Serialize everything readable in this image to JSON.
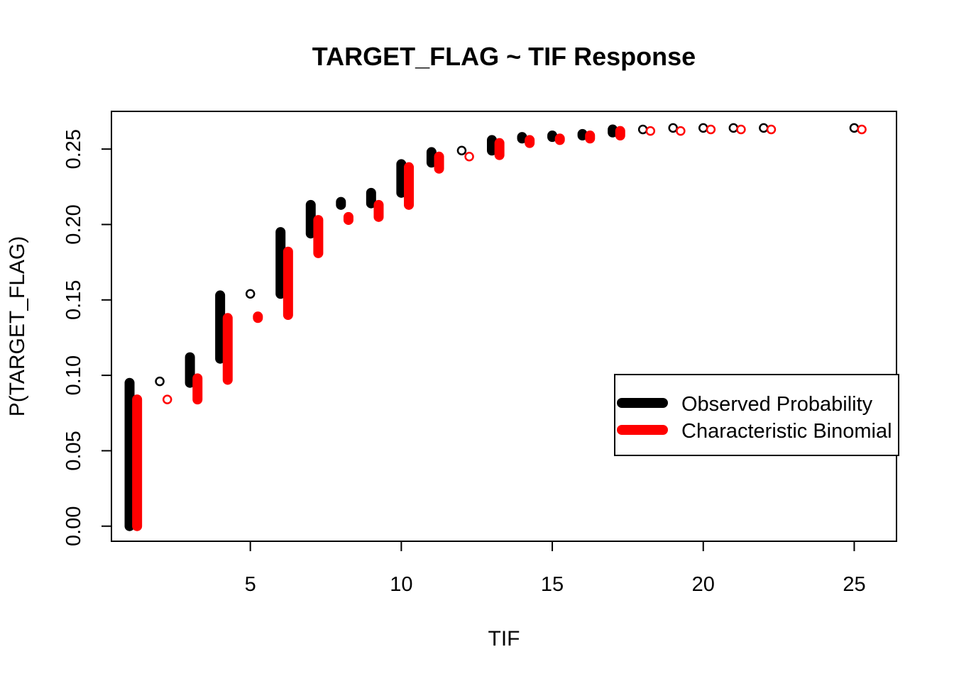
{
  "chart_data": {
    "type": "scatter",
    "title": "TARGET_FLAG ~ TIF Response",
    "xlabel": "TIF",
    "ylabel": "P(TARGET_FLAG)",
    "xlim": [
      0.4,
      26.4
    ],
    "ylim": [
      -0.01,
      0.275
    ],
    "x_ticks": [
      5,
      10,
      15,
      20,
      25
    ],
    "y_ticks": [
      0.0,
      0.05,
      0.1,
      0.15,
      0.2,
      0.25
    ],
    "y_tick_labels": [
      "0.00",
      "0.05",
      "0.10",
      "0.15",
      "0.20",
      "0.25"
    ],
    "legend_position": "right",
    "series": [
      {
        "name": "Observed Probability",
        "color": "#000000",
        "x_offset": 0,
        "points": [
          {
            "x": 1,
            "ymin": 0.0,
            "ymax": 0.095
          },
          {
            "x": 2,
            "ymin": 0.096,
            "ymax": 0.096
          },
          {
            "x": 3,
            "ymin": 0.095,
            "ymax": 0.112
          },
          {
            "x": 4,
            "ymin": 0.111,
            "ymax": 0.153
          },
          {
            "x": 5,
            "ymin": 0.154,
            "ymax": 0.154
          },
          {
            "x": 6,
            "ymin": 0.154,
            "ymax": 0.195
          },
          {
            "x": 7,
            "ymin": 0.194,
            "ymax": 0.213
          },
          {
            "x": 8,
            "ymin": 0.213,
            "ymax": 0.215
          },
          {
            "x": 9,
            "ymin": 0.214,
            "ymax": 0.221
          },
          {
            "x": 10,
            "ymin": 0.221,
            "ymax": 0.24
          },
          {
            "x": 11,
            "ymin": 0.241,
            "ymax": 0.248
          },
          {
            "x": 12,
            "ymin": 0.249,
            "ymax": 0.249
          },
          {
            "x": 13,
            "ymin": 0.249,
            "ymax": 0.256
          },
          {
            "x": 14,
            "ymin": 0.257,
            "ymax": 0.258
          },
          {
            "x": 15,
            "ymin": 0.258,
            "ymax": 0.259
          },
          {
            "x": 16,
            "ymin": 0.259,
            "ymax": 0.26
          },
          {
            "x": 17,
            "ymin": 0.261,
            "ymax": 0.263
          },
          {
            "x": 18,
            "ymin": 0.263,
            "ymax": 0.263
          },
          {
            "x": 19,
            "ymin": 0.264,
            "ymax": 0.264
          },
          {
            "x": 20,
            "ymin": 0.264,
            "ymax": 0.264
          },
          {
            "x": 21,
            "ymin": 0.264,
            "ymax": 0.264
          },
          {
            "x": 22,
            "ymin": 0.264,
            "ymax": 0.264
          },
          {
            "x": 25,
            "ymin": 0.264,
            "ymax": 0.264
          }
        ]
      },
      {
        "name": "Characteristic Binomial",
        "color": "#ff0000",
        "x_offset": 0.25,
        "points": [
          {
            "x": 1,
            "ymin": 0.0,
            "ymax": 0.084
          },
          {
            "x": 2,
            "ymin": 0.084,
            "ymax": 0.084
          },
          {
            "x": 3,
            "ymin": 0.084,
            "ymax": 0.098
          },
          {
            "x": 4,
            "ymin": 0.097,
            "ymax": 0.138
          },
          {
            "x": 5,
            "ymin": 0.138,
            "ymax": 0.139
          },
          {
            "x": 6,
            "ymin": 0.14,
            "ymax": 0.182
          },
          {
            "x": 7,
            "ymin": 0.181,
            "ymax": 0.203
          },
          {
            "x": 8,
            "ymin": 0.203,
            "ymax": 0.205
          },
          {
            "x": 9,
            "ymin": 0.205,
            "ymax": 0.213
          },
          {
            "x": 10,
            "ymin": 0.213,
            "ymax": 0.238
          },
          {
            "x": 11,
            "ymin": 0.237,
            "ymax": 0.245
          },
          {
            "x": 12,
            "ymin": 0.245,
            "ymax": 0.245
          },
          {
            "x": 13,
            "ymin": 0.246,
            "ymax": 0.254
          },
          {
            "x": 14,
            "ymin": 0.254,
            "ymax": 0.256
          },
          {
            "x": 15,
            "ymin": 0.256,
            "ymax": 0.257
          },
          {
            "x": 16,
            "ymin": 0.257,
            "ymax": 0.259
          },
          {
            "x": 17,
            "ymin": 0.259,
            "ymax": 0.262
          },
          {
            "x": 18,
            "ymin": 0.262,
            "ymax": 0.262
          },
          {
            "x": 19,
            "ymin": 0.262,
            "ymax": 0.262
          },
          {
            "x": 20,
            "ymin": 0.263,
            "ymax": 0.263
          },
          {
            "x": 21,
            "ymin": 0.263,
            "ymax": 0.263
          },
          {
            "x": 22,
            "ymin": 0.263,
            "ymax": 0.263
          },
          {
            "x": 25,
            "ymin": 0.263,
            "ymax": 0.263
          }
        ]
      }
    ],
    "legend": {
      "entries": [
        "Observed Probability",
        "Characteristic Binomial"
      ]
    }
  }
}
